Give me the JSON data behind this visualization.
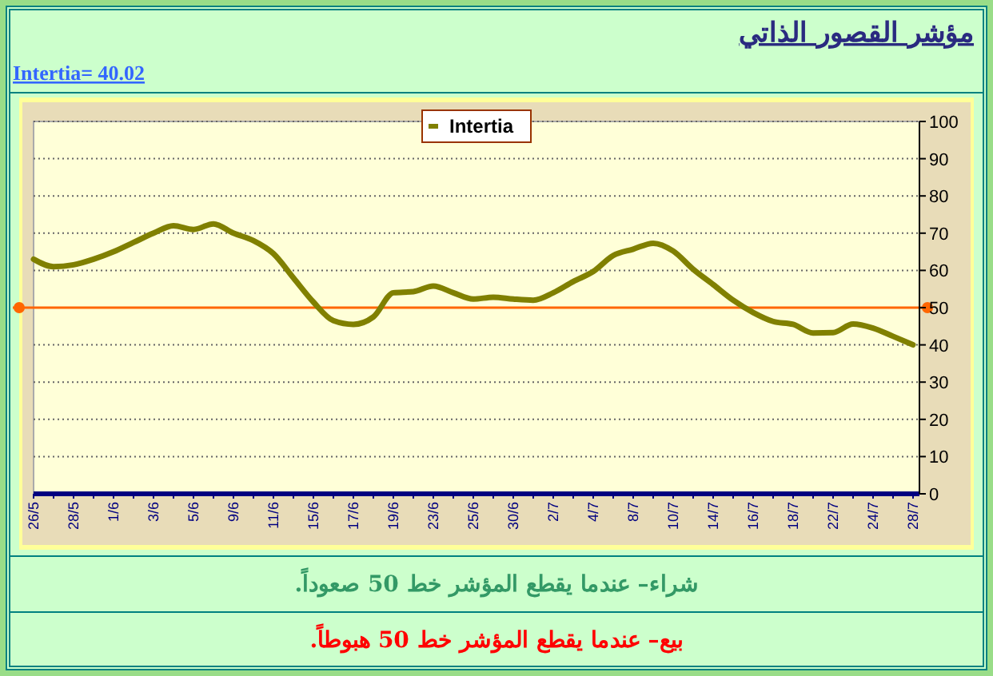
{
  "chart_data": {
    "type": "line",
    "title": "مؤشر القصور الذاتي",
    "subtitle": "Intertia= 40.02",
    "categories": [
      "26/5",
      null,
      "28/5",
      null,
      "1/6",
      null,
      "3/6",
      null,
      "5/6",
      null,
      "9/6",
      null,
      "11/6",
      null,
      "15/6",
      null,
      "17/6",
      null,
      "19/6",
      null,
      "23/6",
      null,
      "25/6",
      null,
      "30/6",
      null,
      "2/7",
      null,
      "4/7",
      null,
      "8/7",
      null,
      "10/7",
      null,
      "14/7",
      null,
      "16/7",
      null,
      "18/7",
      null,
      "22/7",
      null,
      "24/7",
      null,
      "28/7"
    ],
    "series": [
      {
        "name": "Intertia",
        "color": "#808000",
        "values": [
          63,
          61,
          61.5,
          63,
          65,
          67.5,
          70,
          72,
          71,
          72.5,
          70,
          68,
          64.5,
          58,
          51.5,
          46.5,
          45.5,
          47.5,
          54,
          54.3,
          55.8,
          54,
          52.3,
          52.8,
          52.3,
          52,
          54,
          57,
          59.7,
          64,
          65.7,
          67.3,
          65.2,
          60.3,
          56.2,
          52,
          48.7,
          46.3,
          45.5,
          43.2,
          43.3,
          45.6,
          44.5,
          42.3,
          40.02
        ]
      }
    ],
    "ylim": [
      0,
      100
    ],
    "yticks": [
      0,
      10,
      20,
      30,
      40,
      50,
      60,
      70,
      80,
      90,
      100
    ],
    "grid": "y",
    "legend": "top",
    "marker": "none",
    "line_style": "solid",
    "ref_lines": [
      {
        "axis": "y",
        "value": 50,
        "color": "#ff6600"
      }
    ],
    "annotations": [
      "شراء– عندما يقطع المؤشر خط 50 صعوداً.",
      "بيع– عندما يقطع المؤشر خط 50 هبوطاً."
    ]
  }
}
